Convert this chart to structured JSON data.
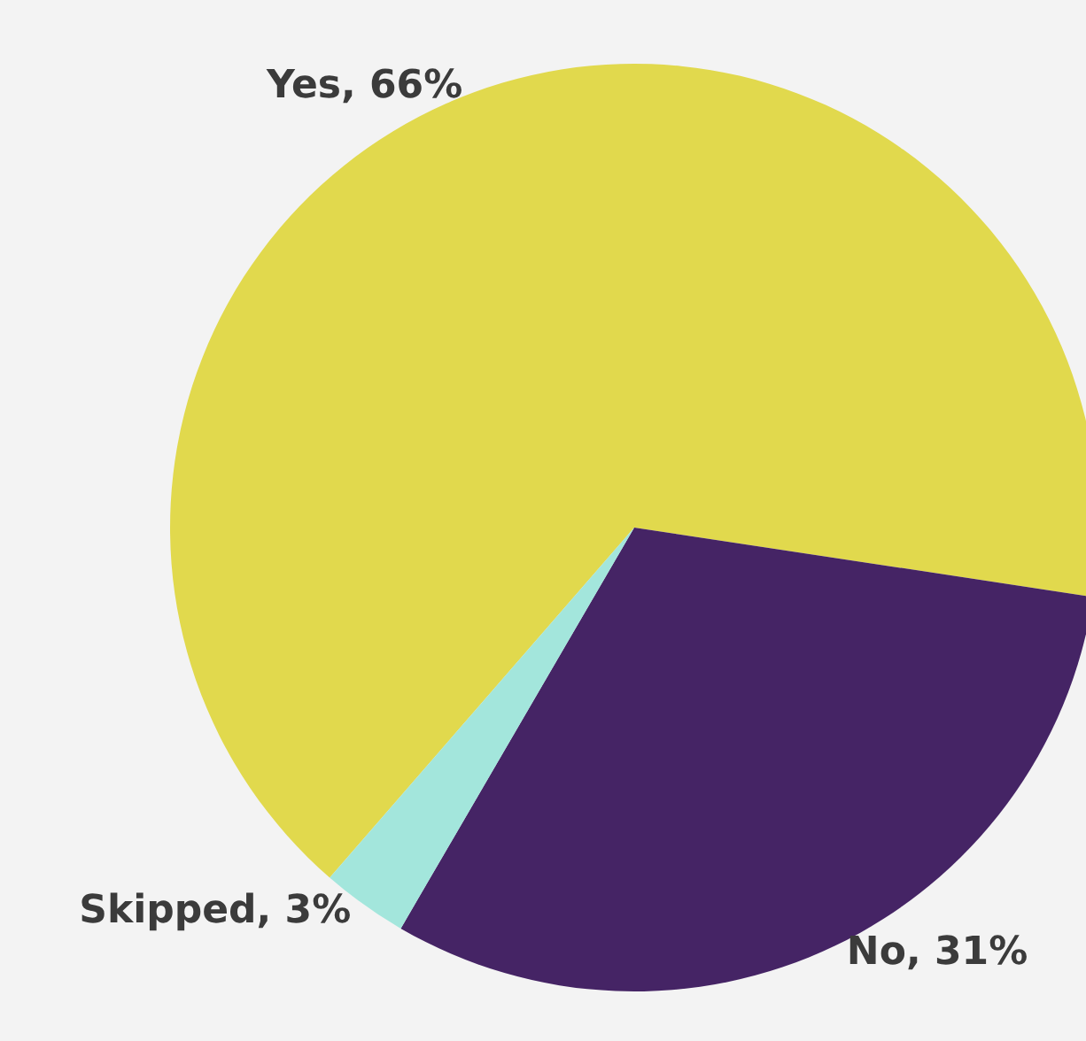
{
  "chart_data": {
    "type": "pie",
    "categories": [
      "Yes",
      "No",
      "Skipped"
    ],
    "values": [
      66,
      31,
      3
    ],
    "value_labels": [
      "66%",
      "31%",
      "3%"
    ],
    "colors": [
      "#e1d94d",
      "#452465",
      "#a3e6dc"
    ],
    "legend": false
  }
}
